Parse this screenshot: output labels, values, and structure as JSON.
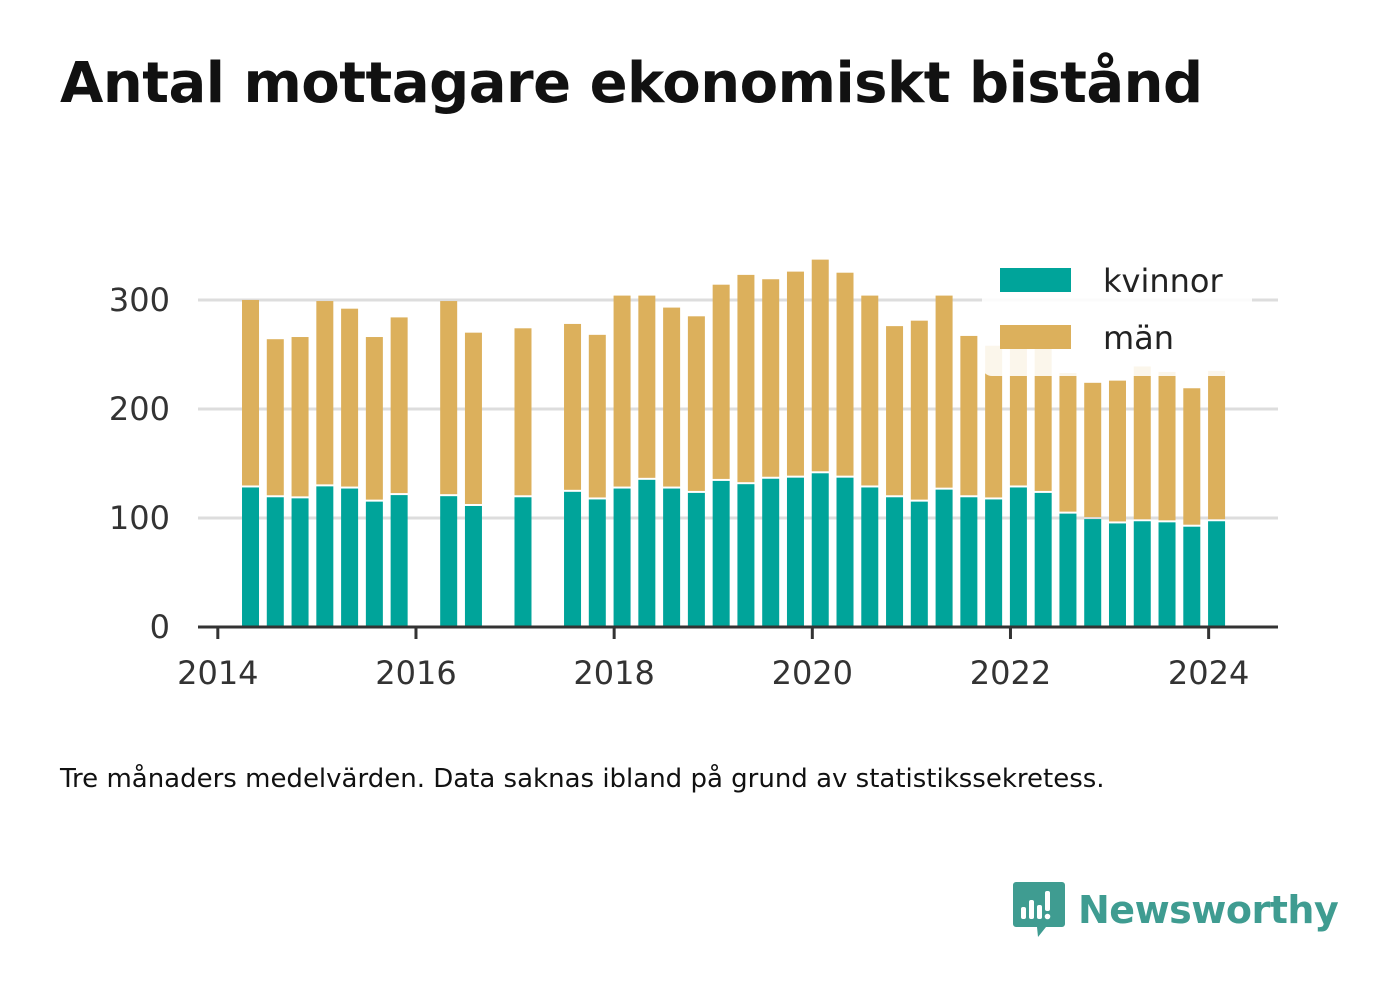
{
  "title": "Antal mottagare ekonomiskt bistånd",
  "note": "Tre månaders medelvärden. Data saknas ibland på grund av statistikssekretess.",
  "brand": {
    "name": "Newsworthy",
    "logo_icon": "newsworthy-logo-icon"
  },
  "colors": {
    "kvinnor": "#00a49a",
    "man": "#dcb05c",
    "grid": "#dddddd",
    "axis": "#333333"
  },
  "chart_data": {
    "type": "bar",
    "stacked": true,
    "title": "Antal mottagare ekonomiskt bistånd",
    "xlabel": "",
    "ylabel": "",
    "ylim": [
      0,
      355
    ],
    "xlim": [
      2013.8,
      2024.7
    ],
    "yticks": [
      0,
      100,
      200,
      300
    ],
    "xticks": [
      "2014",
      "2016",
      "2018",
      "2020",
      "2022",
      "2024"
    ],
    "grid": true,
    "legend_position": "top-right",
    "x": [
      2014.33,
      2014.58,
      2014.83,
      2015.08,
      2015.33,
      2015.58,
      2015.83,
      2016.33,
      2016.58,
      2017.08,
      2017.58,
      2017.83,
      2018.08,
      2018.33,
      2018.58,
      2018.83,
      2019.08,
      2019.33,
      2019.58,
      2019.83,
      2020.08,
      2020.33,
      2020.58,
      2020.83,
      2021.08,
      2021.33,
      2021.58,
      2021.83,
      2022.08,
      2022.33,
      2022.58,
      2022.83,
      2023.08,
      2023.33,
      2023.58,
      2023.83,
      2024.08
    ],
    "series": [
      {
        "name": "kvinnor",
        "values": [
          128,
          119,
          118,
          129,
          127,
          115,
          121,
          120,
          111,
          119,
          124,
          117,
          127,
          135,
          127,
          123,
          134,
          131,
          136,
          137,
          141,
          137,
          128,
          119,
          115,
          126,
          119,
          117,
          128,
          123,
          104,
          99,
          95,
          97,
          96,
          92,
          97
        ]
      },
      {
        "name": "män",
        "values": [
          172,
          145,
          148,
          170,
          165,
          151,
          163,
          179,
          159,
          155,
          154,
          151,
          177,
          169,
          166,
          162,
          180,
          192,
          183,
          189,
          196,
          188,
          176,
          157,
          166,
          178,
          148,
          141,
          136,
          141,
          129,
          125,
          131,
          142,
          138,
          127,
          138
        ]
      }
    ]
  }
}
